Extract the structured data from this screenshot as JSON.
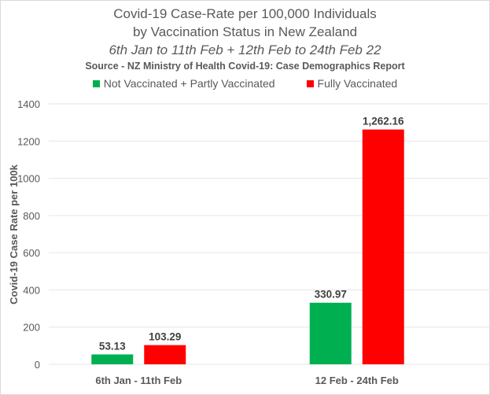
{
  "chart_data": {
    "type": "bar",
    "title": "Covid-19 Case-Rate per 100,000 Individuals",
    "title_line2": "by Vaccination Status in New Zealand",
    "subtitle": "6th Jan to 11th Feb + 12th Feb to 24th Feb 22",
    "source": "Source - NZ Ministry of Health Covid-19: Case Demographics Report",
    "xlabel": "",
    "ylabel": "Covid-19 Case Rate per 100k",
    "ylim": [
      0,
      1400
    ],
    "yticks": [
      0,
      200,
      400,
      600,
      800,
      1000,
      1200,
      1400
    ],
    "grid": true,
    "legend_position": "top",
    "categories": [
      "6th Jan - 11th Feb",
      "12 Feb - 24th Feb"
    ],
    "series": [
      {
        "name": "Not Vaccinated + Partly Vaccinated",
        "color": "#00b050",
        "values": [
          53.13,
          330.97
        ],
        "labels": [
          "53.13",
          "330.97"
        ]
      },
      {
        "name": "Fully Vaccinated",
        "color": "#ff0000",
        "values": [
          103.29,
          1262.16
        ],
        "labels": [
          "103.29",
          "1,262.16"
        ]
      }
    ]
  }
}
